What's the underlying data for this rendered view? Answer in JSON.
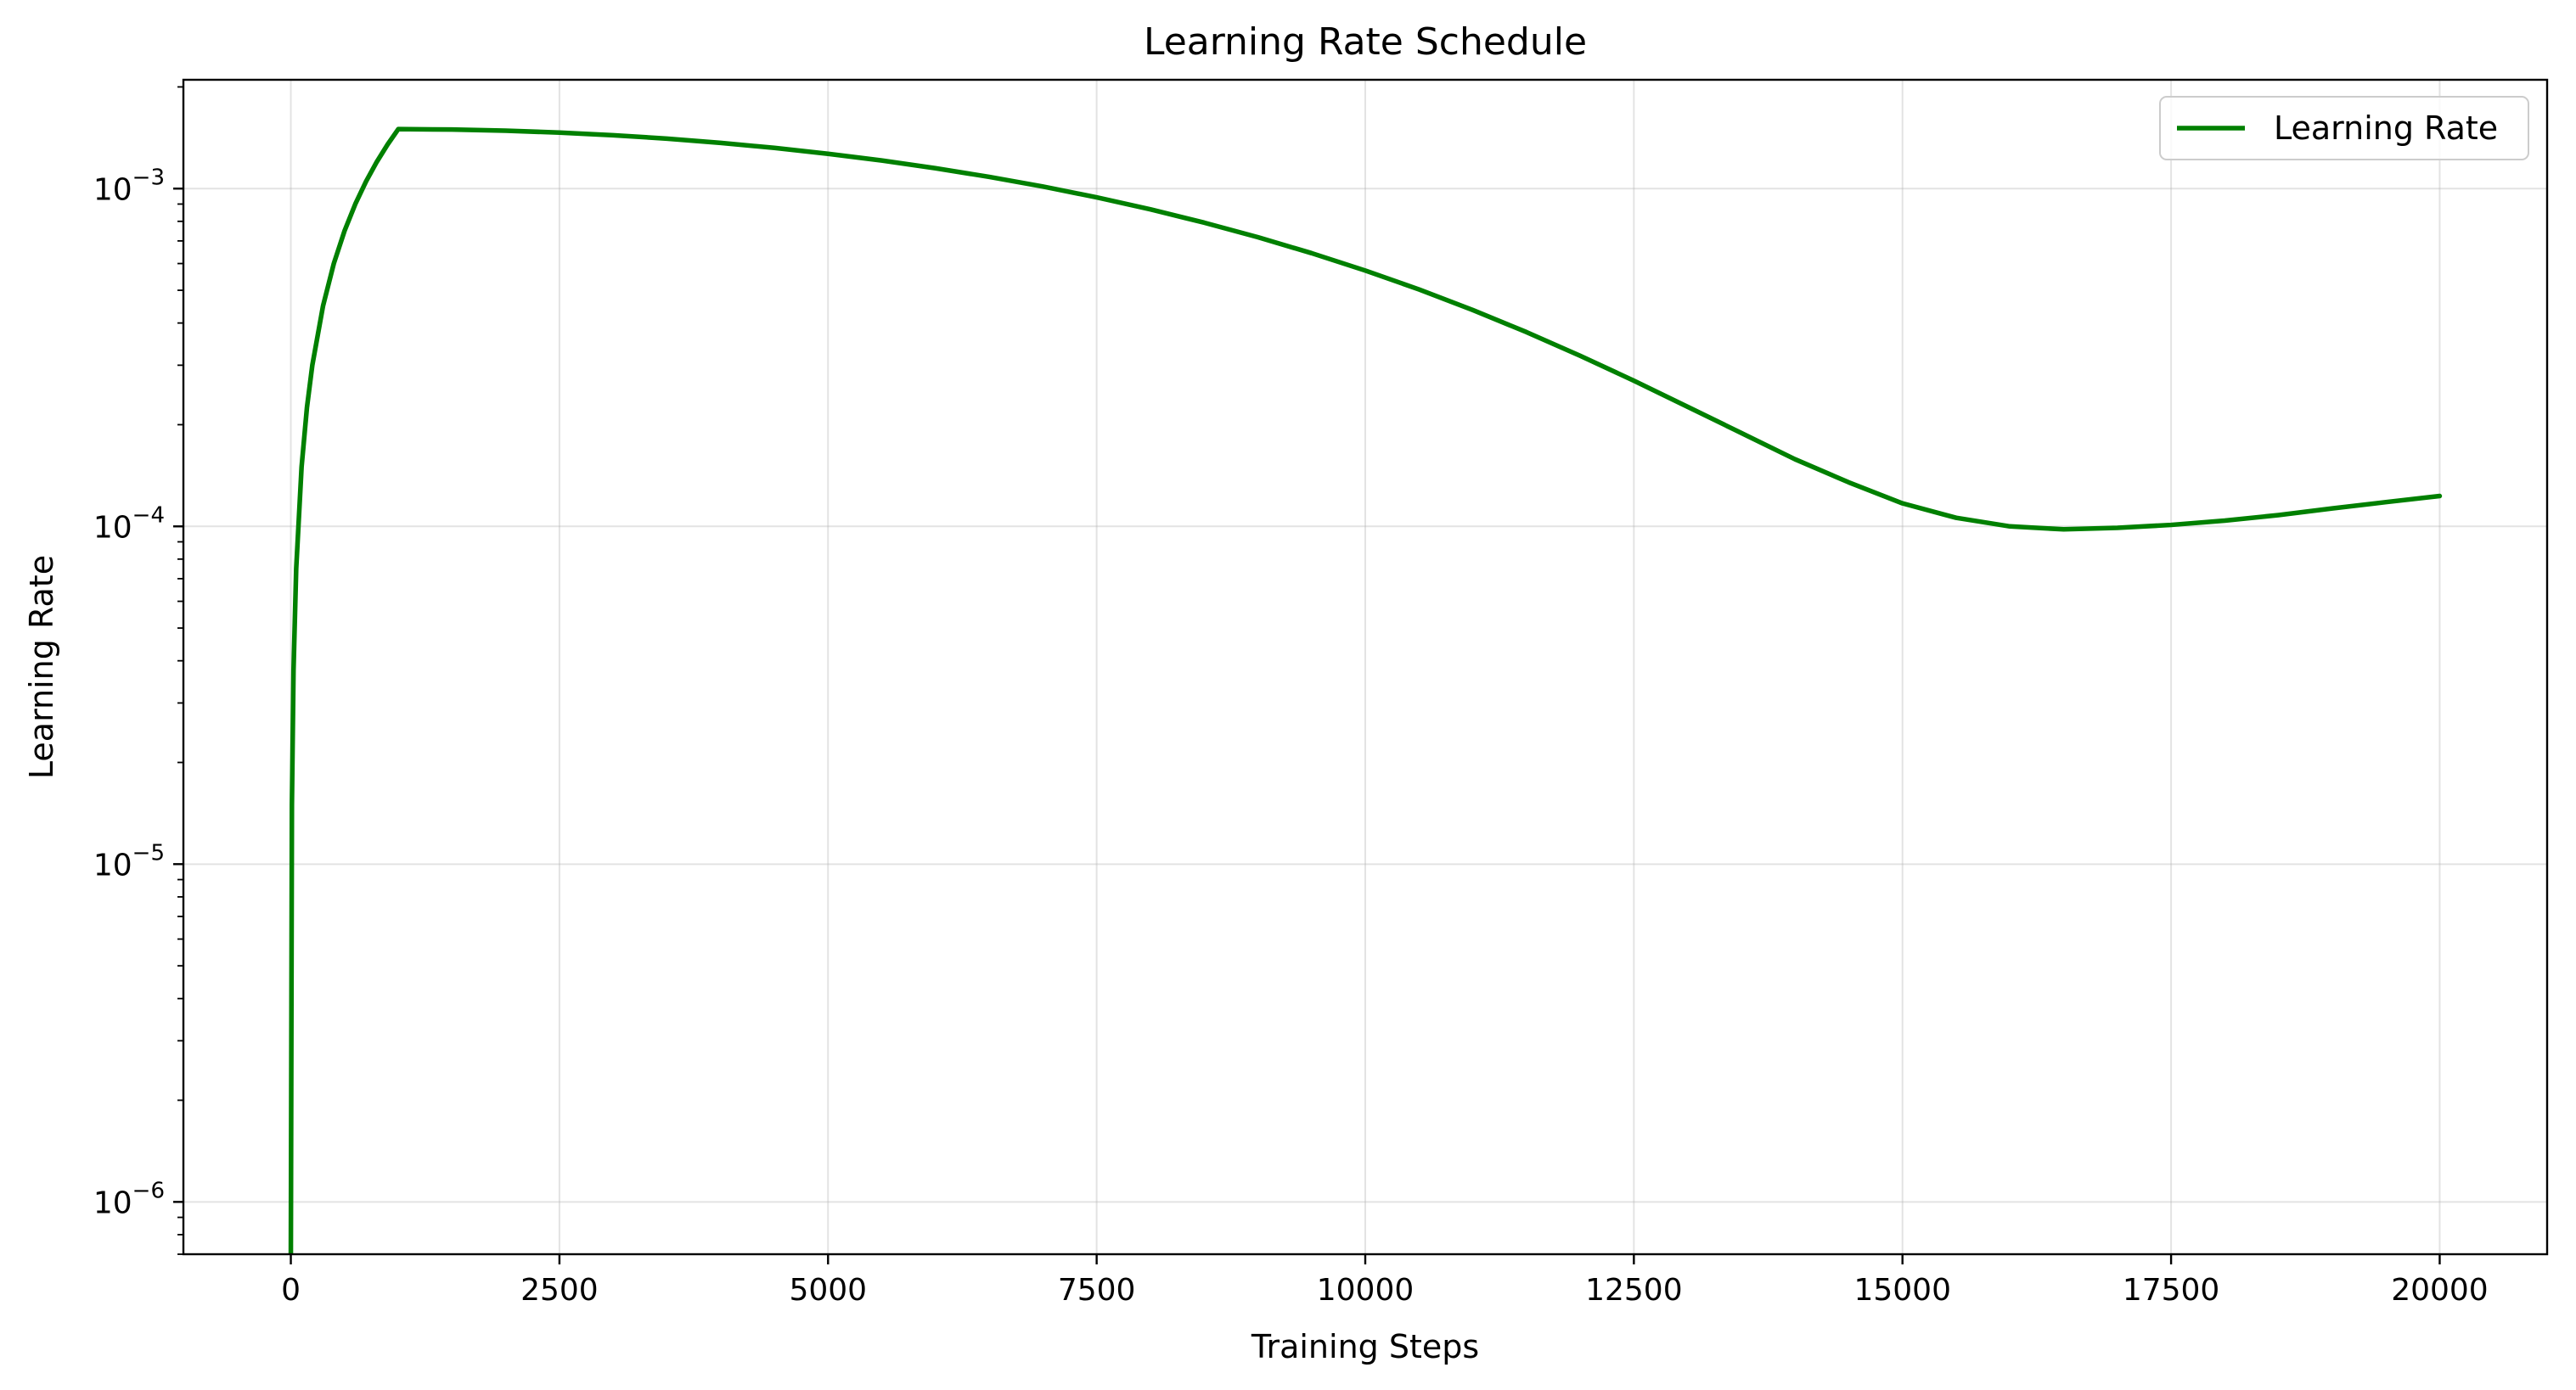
{
  "chart_data": {
    "type": "line",
    "title": "Learning Rate Schedule",
    "xlabel": "Training Steps",
    "ylabel": "Learning Rate",
    "xlim": [
      -1000,
      21000
    ],
    "ylim": [
      7e-07,
      0.0021
    ],
    "y_scale": "log",
    "x_ticks": [
      0,
      2500,
      5000,
      7500,
      10000,
      12500,
      15000,
      17500,
      20000
    ],
    "x_tick_labels": [
      "0",
      "2500",
      "5000",
      "7500",
      "10000",
      "12500",
      "15000",
      "17500",
      "20000"
    ],
    "y_ticks": [
      1e-06,
      1e-05,
      0.0001,
      0.001
    ],
    "y_tick_labels": [
      {
        "base": "10",
        "exponent": "−6"
      },
      {
        "base": "10",
        "exponent": "−5"
      },
      {
        "base": "10",
        "exponent": "−4"
      },
      {
        "base": "10",
        "exponent": "−3"
      }
    ],
    "grid": true,
    "legend_position": "top-right",
    "series": [
      {
        "name": "Learning Rate",
        "color": "#008000",
        "x": [
          0,
          10,
          25,
          50,
          100,
          150,
          200,
          300,
          400,
          500,
          600,
          700,
          800,
          900,
          1000,
          1500,
          2000,
          2500,
          3000,
          3500,
          4000,
          4500,
          5000,
          5500,
          6000,
          6500,
          7000,
          7500,
          8000,
          8500,
          9000,
          9500,
          10000,
          10500,
          11000,
          11500,
          12000,
          12500,
          13000,
          13500,
          14000,
          14500,
          15000,
          15500,
          16000,
          16500,
          17000,
          17500,
          18000,
          18500,
          19000,
          19500,
          20000
        ],
        "y": [
          7e-07,
          1.5e-05,
          3.75e-05,
          7.5e-05,
          0.00015,
          0.000225,
          0.0003,
          0.00045,
          0.0006,
          0.00075,
          0.0009,
          0.00105,
          0.0012,
          0.00135,
          0.0015,
          0.001496,
          0.001484,
          0.001465,
          0.001439,
          0.001406,
          0.001366,
          0.00132,
          0.001268,
          0.001211,
          0.001149,
          0.001083,
          0.001014,
          0.000942,
          0.000868,
          0.000793,
          0.000718,
          0.000644,
          0.000572,
          0.000503,
          0.000437,
          0.000376,
          0.00032,
          0.00027,
          0.000226,
          0.000189,
          0.000158,
          0.000135,
          0.000117,
          0.000106,
          0.0001,
          9.8e-05,
          9.9e-05,
          0.000101,
          0.000104,
          0.000108,
          0.000113,
          0.000118,
          0.000123
        ]
      }
    ]
  }
}
